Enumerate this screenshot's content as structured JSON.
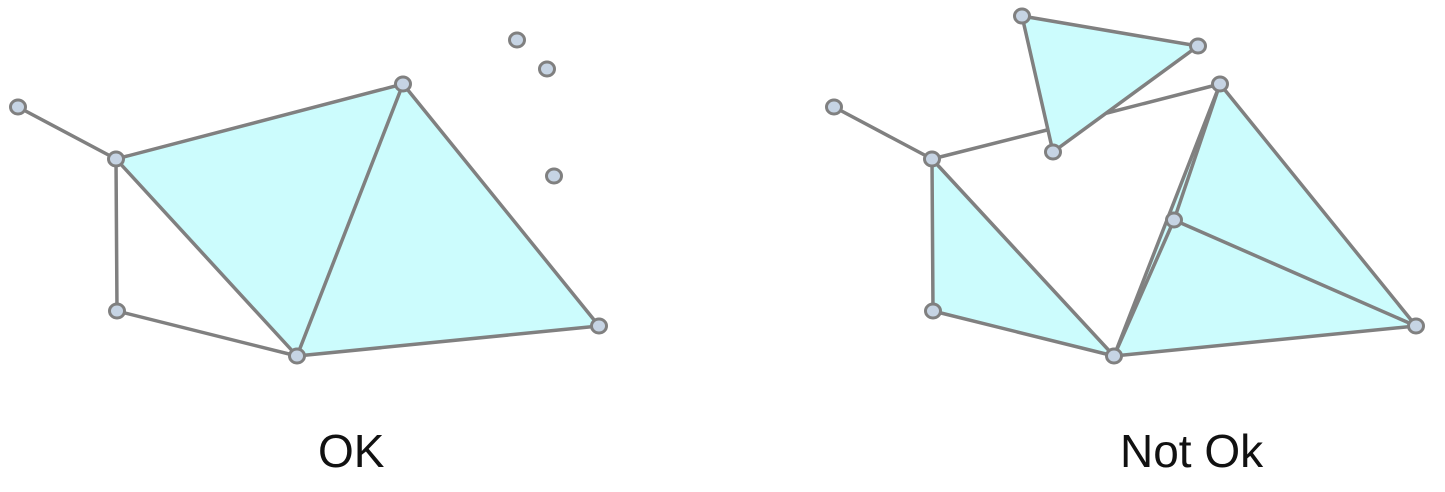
{
  "colors": {
    "fill": "#ccfcfd",
    "stroke": "#808080",
    "vertex_fill": "#c6d4e4",
    "vertex_stroke": "#808080",
    "caption": "#111111"
  },
  "panels": [
    {
      "caption": "OK",
      "vertices": [
        [
          18,
          107
        ],
        [
          116,
          159
        ],
        [
          117,
          311
        ],
        [
          297,
          356
        ],
        [
          403,
          84
        ],
        [
          599,
          326
        ],
        [
          517,
          40
        ],
        [
          547,
          69
        ],
        [
          554,
          176
        ]
      ],
      "triangles": [
        [
          1,
          4,
          3
        ],
        [
          4,
          5,
          3
        ]
      ],
      "edges": [
        [
          0,
          1
        ],
        [
          1,
          2
        ],
        [
          2,
          3
        ]
      ]
    },
    {
      "caption": "Not Ok",
      "vertices": [
        [
          834,
          107
        ],
        [
          932,
          159
        ],
        [
          933,
          311
        ],
        [
          1114,
          356
        ],
        [
          1220,
          84
        ],
        [
          1416,
          326
        ],
        [
          1022,
          16
        ],
        [
          1198,
          46
        ],
        [
          1053,
          152
        ],
        [
          1174,
          220
        ]
      ],
      "polygons": [
        [
          1,
          1047,
          130
        ],
        [
          1047,
          130,
          8
        ],
        [
          8,
          1107,
          113
        ],
        [
          1107,
          113,
          4
        ],
        [
          4,
          5,
          3
        ],
        [
          1,
          2,
          3
        ],
        [
          4,
          9,
          3
        ]
      ],
      "triangles": [
        [
          6,
          7,
          8
        ],
        [
          1,
          3,
          2
        ],
        [
          4,
          5,
          9
        ],
        [
          9,
          5,
          3
        ]
      ],
      "edges": [
        [
          0,
          1
        ],
        [
          1,
          2
        ],
        [
          2,
          3
        ],
        [
          1,
          3
        ],
        [
          4,
          3
        ],
        [
          9,
          5
        ]
      ]
    }
  ]
}
